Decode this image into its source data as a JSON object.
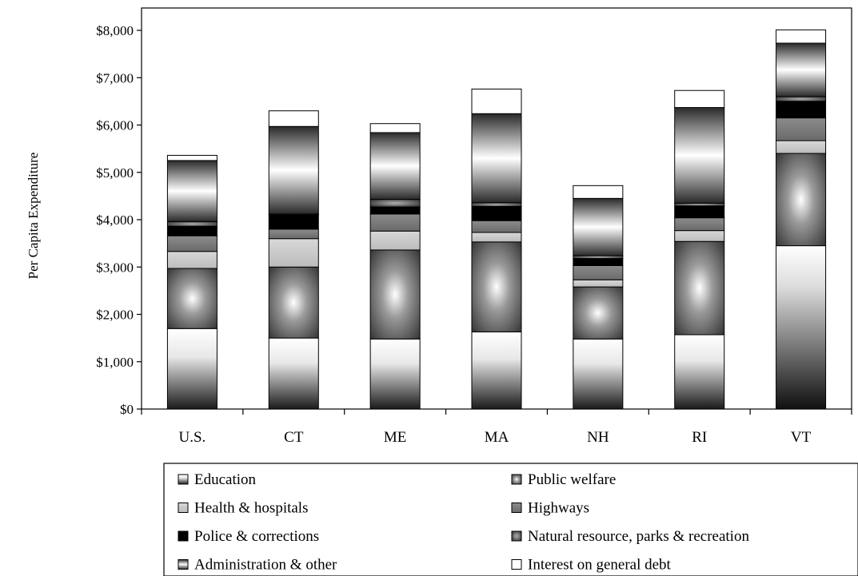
{
  "chart_data": {
    "type": "bar",
    "stacked": true,
    "title": "",
    "xlabel": "",
    "ylabel": "Per Capita Expenditure",
    "ylim": [
      0,
      8000
    ],
    "yticks": [
      0,
      1000,
      2000,
      3000,
      4000,
      5000,
      6000,
      7000,
      8000
    ],
    "ytick_labels": [
      "$0",
      "$1,000",
      "$2,000",
      "$3,000",
      "$4,000",
      "$5,000",
      "$6,000",
      "$7,000",
      "$8,000"
    ],
    "grid": false,
    "legend_position": "bottom",
    "categories": [
      "U.S.",
      "CT",
      "ME",
      "MA",
      "NH",
      "RI",
      "VT"
    ],
    "series": [
      {
        "name": "Education",
        "values": [
          1700,
          1500,
          1480,
          1630,
          1480,
          1570,
          3450
        ]
      },
      {
        "name": "Public welfare",
        "values": [
          1270,
          1500,
          1880,
          1900,
          1100,
          1970,
          1950
        ]
      },
      {
        "name": "Health & hospitals",
        "values": [
          360,
          600,
          400,
          200,
          150,
          230,
          270
        ]
      },
      {
        "name": "Highways",
        "values": [
          330,
          200,
          360,
          250,
          300,
          270,
          480
        ]
      },
      {
        "name": "Police & corrections",
        "values": [
          200,
          300,
          150,
          300,
          150,
          250,
          350
        ]
      },
      {
        "name": "Natural resource, parks & recreation",
        "values": [
          100,
          20,
          160,
          80,
          60,
          60,
          100
        ]
      },
      {
        "name": "Administration & other",
        "values": [
          1290,
          1850,
          1410,
          1880,
          1210,
          2020,
          1130
        ]
      },
      {
        "name": "Interest on general debt",
        "values": [
          110,
          330,
          190,
          520,
          270,
          360,
          280
        ]
      }
    ]
  }
}
